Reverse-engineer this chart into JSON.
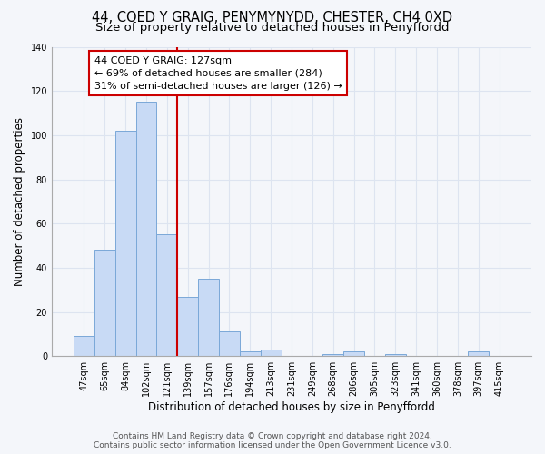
{
  "title_line1": "44, COED Y GRAIG, PENYMYNYDD, CHESTER, CH4 0XD",
  "title_line2": "Size of property relative to detached houses in Penyffordd",
  "xlabel": "Distribution of detached houses by size in Penyffordd",
  "ylabel": "Number of detached properties",
  "categories": [
    "47sqm",
    "65sqm",
    "84sqm",
    "102sqm",
    "121sqm",
    "139sqm",
    "157sqm",
    "176sqm",
    "194sqm",
    "213sqm",
    "231sqm",
    "249sqm",
    "268sqm",
    "286sqm",
    "305sqm",
    "323sqm",
    "341sqm",
    "360sqm",
    "378sqm",
    "397sqm",
    "415sqm"
  ],
  "values": [
    9,
    48,
    102,
    115,
    55,
    27,
    35,
    11,
    2,
    3,
    0,
    0,
    1,
    2,
    0,
    1,
    0,
    0,
    0,
    2,
    0
  ],
  "bar_color": "#c8daf5",
  "bar_edge_color": "#7aa8d8",
  "vline_color": "#cc0000",
  "vline_x": 4.5,
  "annotation_line1": "44 COED Y GRAIG: 127sqm",
  "annotation_line2": "← 69% of detached houses are smaller (284)",
  "annotation_line3": "31% of semi-detached houses are larger (126) →",
  "annotation_box_color": "#cc0000",
  "annotation_box_facecolor": "white",
  "ylim": [
    0,
    140
  ],
  "yticks": [
    0,
    20,
    40,
    60,
    80,
    100,
    120,
    140
  ],
  "footer_line1": "Contains HM Land Registry data © Crown copyright and database right 2024.",
  "footer_line2": "Contains public sector information licensed under the Open Government Licence v3.0.",
  "bg_color": "#f4f6fa",
  "title_fontsize": 10.5,
  "subtitle_fontsize": 9.5,
  "axis_label_fontsize": 8.5,
  "tick_fontsize": 7,
  "annotation_fontsize": 8,
  "footer_fontsize": 6.5
}
